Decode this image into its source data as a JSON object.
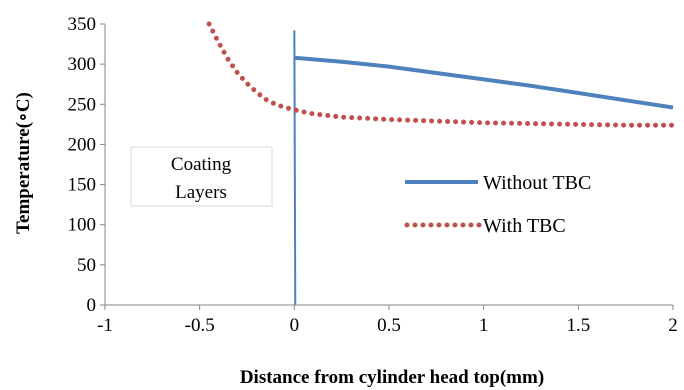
{
  "chart_data": {
    "type": "line",
    "title": "",
    "xlabel": "Distance from cylinder head top(mm)",
    "ylabel": "Temperature(∘C)",
    "xlim": [
      -1,
      2
    ],
    "ylim": [
      0,
      350
    ],
    "x_ticks": [
      "-1",
      "-0.5",
      "0",
      "0.5",
      "1",
      "1.5",
      "2"
    ],
    "y_ticks": [
      "0",
      "50",
      "100",
      "150",
      "200",
      "250",
      "300",
      "350"
    ],
    "grid": false,
    "legend_position": "right",
    "series": [
      {
        "name": "Without TBC",
        "color": "#4f81bd",
        "style": "solid",
        "x": [
          0,
          0.25,
          0.5,
          0.75,
          1.0,
          1.25,
          1.5,
          1.75,
          2.0
        ],
        "y": [
          308,
          303,
          297,
          289,
          281,
          273,
          264,
          255,
          246
        ]
      },
      {
        "name": "With TBC",
        "color": "#c0504d",
        "style": "dotted",
        "x": [
          -0.45,
          -0.4,
          -0.35,
          -0.3,
          -0.25,
          -0.2,
          -0.15,
          -0.1,
          -0.05,
          0,
          0.1,
          0.25,
          0.5,
          0.75,
          1.0,
          1.25,
          1.5,
          1.75,
          2.0
        ],
        "y": [
          350,
          327,
          306,
          289,
          276,
          265,
          256,
          250,
          246,
          243,
          238,
          234,
          231,
          229,
          227,
          226,
          225,
          224,
          224
        ]
      }
    ],
    "annotations": [
      {
        "text_lines": [
          "Coating",
          "Layers"
        ]
      }
    ],
    "reference_line": {
      "x_top": 0,
      "x_bottom": 0.005,
      "y_top": 342,
      "y_bottom": 0,
      "color": "#4f81bd"
    }
  }
}
